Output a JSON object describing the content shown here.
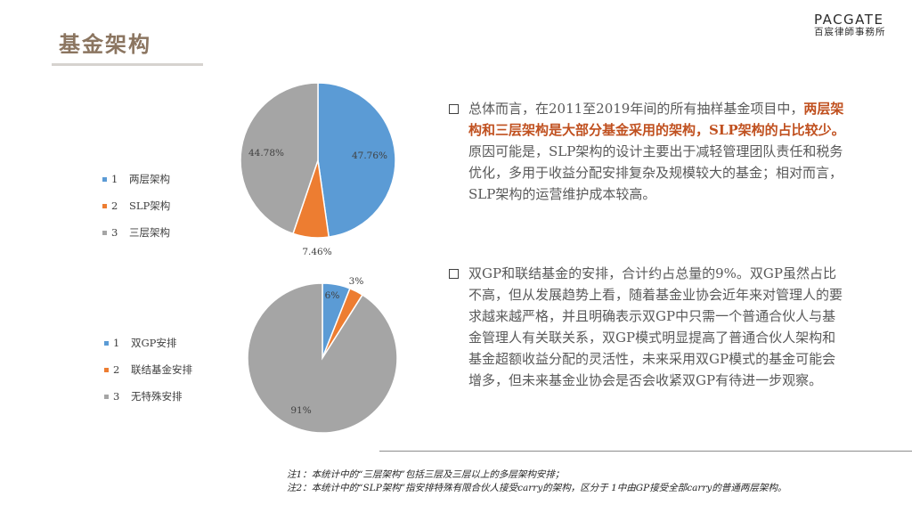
{
  "header": {
    "title": "基金架构",
    "logo_main": "PACGATE",
    "logo_sub": "百宸律師事務所"
  },
  "colors": {
    "blue": "#5b9bd5",
    "orange": "#ed7d31",
    "gray": "#a5a5a5",
    "title": "#8b7560",
    "highlight": "#c0501f"
  },
  "chart_data": [
    {
      "type": "pie",
      "categories": [
        "两层架构",
        "SLP架构",
        "三层架构"
      ],
      "legend_numbers": [
        "1",
        "2",
        "3"
      ],
      "values": [
        47.76,
        7.46,
        44.78
      ],
      "labels": [
        "47.76%",
        "7.46%",
        "44.78%"
      ],
      "colors": [
        "#5b9bd5",
        "#ed7d31",
        "#a5a5a5"
      ],
      "legend": "left"
    },
    {
      "type": "pie",
      "categories": [
        "双GP安排",
        "联结基金安排",
        "无特殊安排"
      ],
      "legend_numbers": [
        "1",
        "2",
        "3"
      ],
      "values": [
        6,
        3,
        91
      ],
      "labels": [
        "6%",
        "3%",
        "91%"
      ],
      "colors": [
        "#5b9bd5",
        "#ed7d31",
        "#a5a5a5"
      ],
      "legend": "left"
    }
  ],
  "bullets": [
    {
      "pre": "总体而言，在2011至2019年间的所有抽样基金项目中，",
      "bold": "两层架构和三层架构是大部分基金采用的架构，SLP架构的占比较少。",
      "post": "原因可能是，SLP架构的设计主要出于减轻管理团队责任和税务优化，多用于收益分配安排复杂及规模较大的基金；相对而言，SLP架构的运营维护成本较高。"
    },
    {
      "text": "双GP和联结基金的安排，合计约占总量的9%。双GP虽然占比不高，但从发展趋势上看，随着基金业协会近年来对管理人的要求越来越严格，并且明确表示双GP中只需一个普通合伙人与基金管理人有关联关系，双GP模式明显提高了普通合伙人架构和基金超额收益分配的灵活性，未来采用双GP模式的基金可能会增多，但未来基金业协会是否会收紧双GP有待进一步观察。"
    }
  ],
  "notes": [
    "注1：本统计中的“三层架构”包括三层及三层以上的多层架构安排；",
    "注2：本统计中的“SLP架构”指安排特殊有限合伙人接受carry的架构，区分于 1中由GP接受全部carry的普通两层架构。"
  ]
}
